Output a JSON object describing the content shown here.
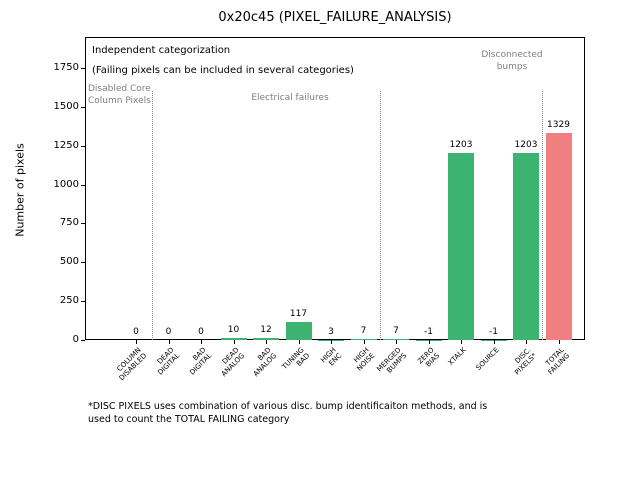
{
  "chart_data": {
    "type": "bar",
    "title": "0x20c45 (PIXEL_FAILURE_ANALYSIS)",
    "ylabel": "Number of pixels",
    "xlabel": "",
    "ylim": [
      0,
      1950
    ],
    "yticks": [
      0,
      250,
      500,
      750,
      1000,
      1250,
      1500,
      1750
    ],
    "grid": false,
    "legend": "none",
    "categories": [
      "COLUMN\nDISABLED",
      "DEAD\nDIGITAL",
      "BAD\nDIGITAL",
      "DEAD\nANALOG",
      "BAD\nANALOG",
      "TUNING\nBAD",
      "HIGH\nENC",
      "HIGH\nNOISE",
      "MERGED\nBUMPS",
      "ZERO\nBIAS",
      "XTALK",
      "SOURCE",
      "DISC.\nPIXELS*",
      "TOTAL\nFAILING"
    ],
    "values": [
      0,
      0,
      0,
      10,
      12,
      117,
      3,
      7,
      7,
      -1,
      1203,
      -1,
      1203,
      1329
    ],
    "bar_colors": [
      "#3cb371",
      "#3cb371",
      "#3cb371",
      "#3cb371",
      "#3cb371",
      "#3cb371",
      "#3cb371",
      "#3cb371",
      "#3cb371",
      "#3cb371",
      "#3cb371",
      "#3cb371",
      "#3cb371",
      "#f08080"
    ],
    "colors": {
      "bar_green": "#3cb371",
      "bar_red": "#f08080",
      "section_gray": "#7f7f7f"
    },
    "section_divider_after_indices": [
      0,
      7,
      12
    ],
    "sections": [
      "Disabled Core\nColumn Pixels",
      "Electrical failures",
      "Disconnected\nbumps"
    ],
    "annotations": {
      "line1": "Independent categorization",
      "line2": "(Failing pixels can be included in several categories)"
    },
    "footnote": "*DISC PIXELS uses combination of various disc. bump identificaiton methods, and is\nused to count the TOTAL FAILING category"
  }
}
